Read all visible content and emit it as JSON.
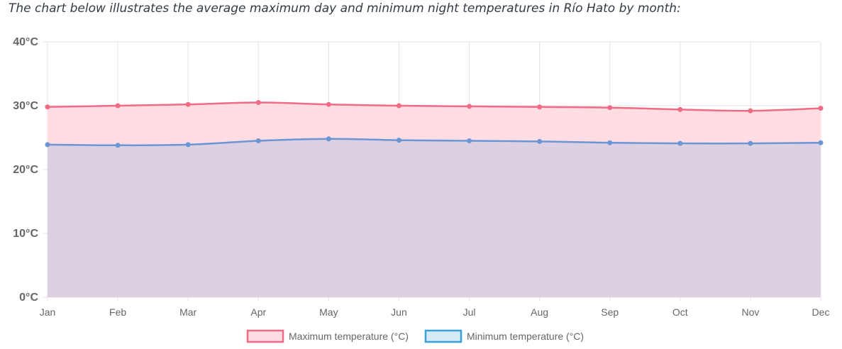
{
  "caption": "The chart below illustrates the average maximum day and minimum night temperatures in Río Hato by month:",
  "chart_data": {
    "type": "area",
    "categories": [
      "Jan",
      "Feb",
      "Mar",
      "Apr",
      "May",
      "Jun",
      "Jul",
      "Aug",
      "Sep",
      "Oct",
      "Nov",
      "Dec"
    ],
    "y_tick_labels": [
      "40°C",
      "30°C",
      "20°C",
      "10°C",
      "0°C"
    ],
    "ylim": [
      0,
      40
    ],
    "grid": true,
    "legend_position": "bottom",
    "series": [
      {
        "name": "Maximum temperature (°C)",
        "values": [
          29.8,
          30.0,
          30.2,
          30.5,
          30.2,
          30.0,
          29.9,
          29.8,
          29.7,
          29.4,
          29.2,
          29.6
        ],
        "line_color": "#ef6b86",
        "fill_color": "#ffdde3"
      },
      {
        "name": "Minimum temperature (°C)",
        "values": [
          23.9,
          23.8,
          23.9,
          24.5,
          24.8,
          24.6,
          24.5,
          24.4,
          24.2,
          24.1,
          24.1,
          24.2
        ],
        "line_color": "#6a96d6",
        "fill_color": "#ddd0e3"
      }
    ]
  }
}
